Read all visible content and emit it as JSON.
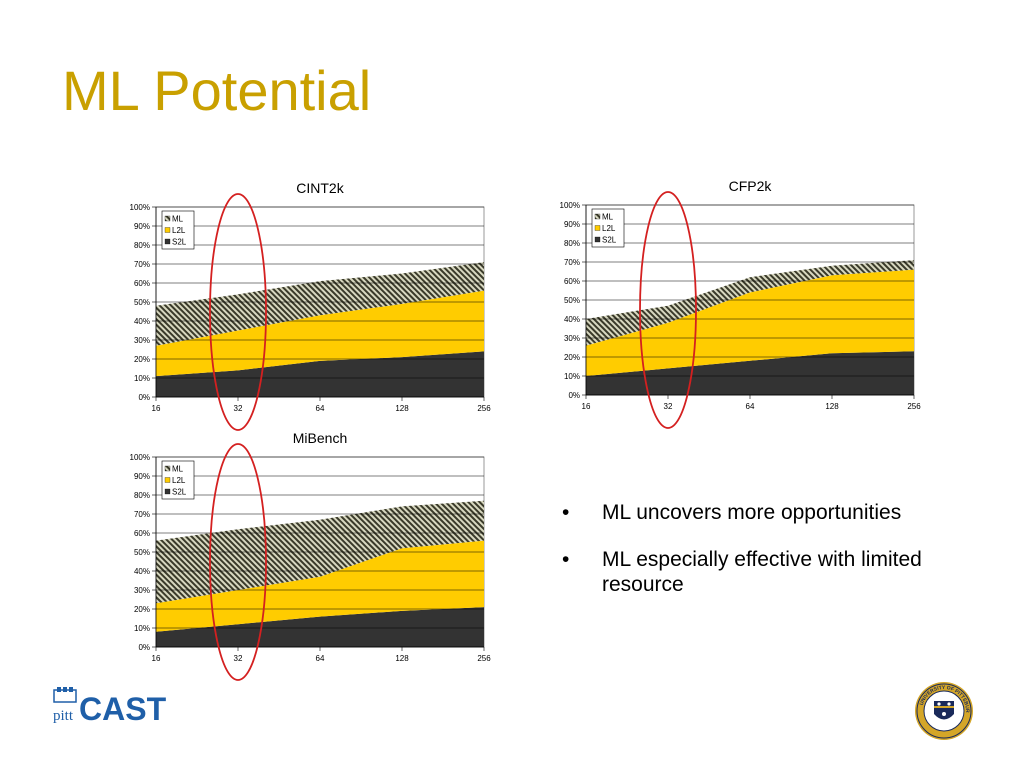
{
  "slide": {
    "title": "ML Potential",
    "bullets": [
      "ML uncovers more opportunities",
      "ML especially effective with limited resource"
    ],
    "bullet_glyph": "•"
  },
  "logos": {
    "left": {
      "icon": "pitt-cast-logo",
      "main_text": "CAST",
      "sub_text": "pitt",
      "color": "#1f5fa8"
    },
    "right": {
      "icon": "university-of-pittsburgh-seal",
      "text": "UNIVERSITY OF PITTSBURGH"
    }
  },
  "colors": {
    "S2L": "#333333",
    "L2L": "#ffcc00",
    "ML": "#d8d8c0",
    "ML_stripe": "#3a3a2a",
    "highlight": "#d42020",
    "title": "#c9a000",
    "grid": "#000000"
  },
  "chart_data": [
    {
      "type": "area",
      "stacked": true,
      "title": "CINT2k",
      "x": [
        "16",
        "32",
        "64",
        "128",
        "256"
      ],
      "y_ticks": [
        "0%",
        "10%",
        "20%",
        "30%",
        "40%",
        "50%",
        "60%",
        "70%",
        "80%",
        "90%",
        "100%"
      ],
      "ylim": [
        0,
        100
      ],
      "legend": [
        "ML",
        "L2L",
        "S2L"
      ],
      "legend_position": "top-left",
      "highlight_x": "32",
      "series": [
        {
          "name": "S2L",
          "values": [
            11,
            14,
            19,
            21,
            24
          ]
        },
        {
          "name": "L2L",
          "values": [
            16,
            21,
            24,
            28,
            32
          ]
        },
        {
          "name": "ML",
          "values": [
            21,
            19,
            18,
            16,
            15
          ]
        }
      ]
    },
    {
      "type": "area",
      "stacked": true,
      "title": "CFP2k",
      "x": [
        "16",
        "32",
        "64",
        "128",
        "256"
      ],
      "y_ticks": [
        "0%",
        "10%",
        "20%",
        "30%",
        "40%",
        "50%",
        "60%",
        "70%",
        "80%",
        "90%",
        "100%"
      ],
      "ylim": [
        0,
        100
      ],
      "legend": [
        "ML",
        "L2L",
        "S2L"
      ],
      "legend_position": "top-left",
      "highlight_x": "32",
      "series": [
        {
          "name": "S2L",
          "values": [
            10,
            14,
            18,
            22,
            23
          ]
        },
        {
          "name": "L2L",
          "values": [
            16,
            24,
            36,
            41,
            43
          ]
        },
        {
          "name": "ML",
          "values": [
            14,
            9,
            8,
            5,
            5
          ]
        }
      ]
    },
    {
      "type": "area",
      "stacked": true,
      "title": "MiBench",
      "x": [
        "16",
        "32",
        "64",
        "128",
        "256"
      ],
      "y_ticks": [
        "0%",
        "10%",
        "20%",
        "30%",
        "40%",
        "50%",
        "60%",
        "70%",
        "80%",
        "90%",
        "100%"
      ],
      "ylim": [
        0,
        100
      ],
      "legend": [
        "ML",
        "L2L",
        "S2L"
      ],
      "legend_position": "top-left",
      "highlight_x": "32",
      "series": [
        {
          "name": "S2L",
          "values": [
            8,
            12,
            16,
            19,
            21
          ]
        },
        {
          "name": "L2L",
          "values": [
            15,
            18,
            21,
            33,
            35
          ]
        },
        {
          "name": "ML",
          "values": [
            33,
            32,
            30,
            22,
            21
          ]
        }
      ]
    }
  ]
}
